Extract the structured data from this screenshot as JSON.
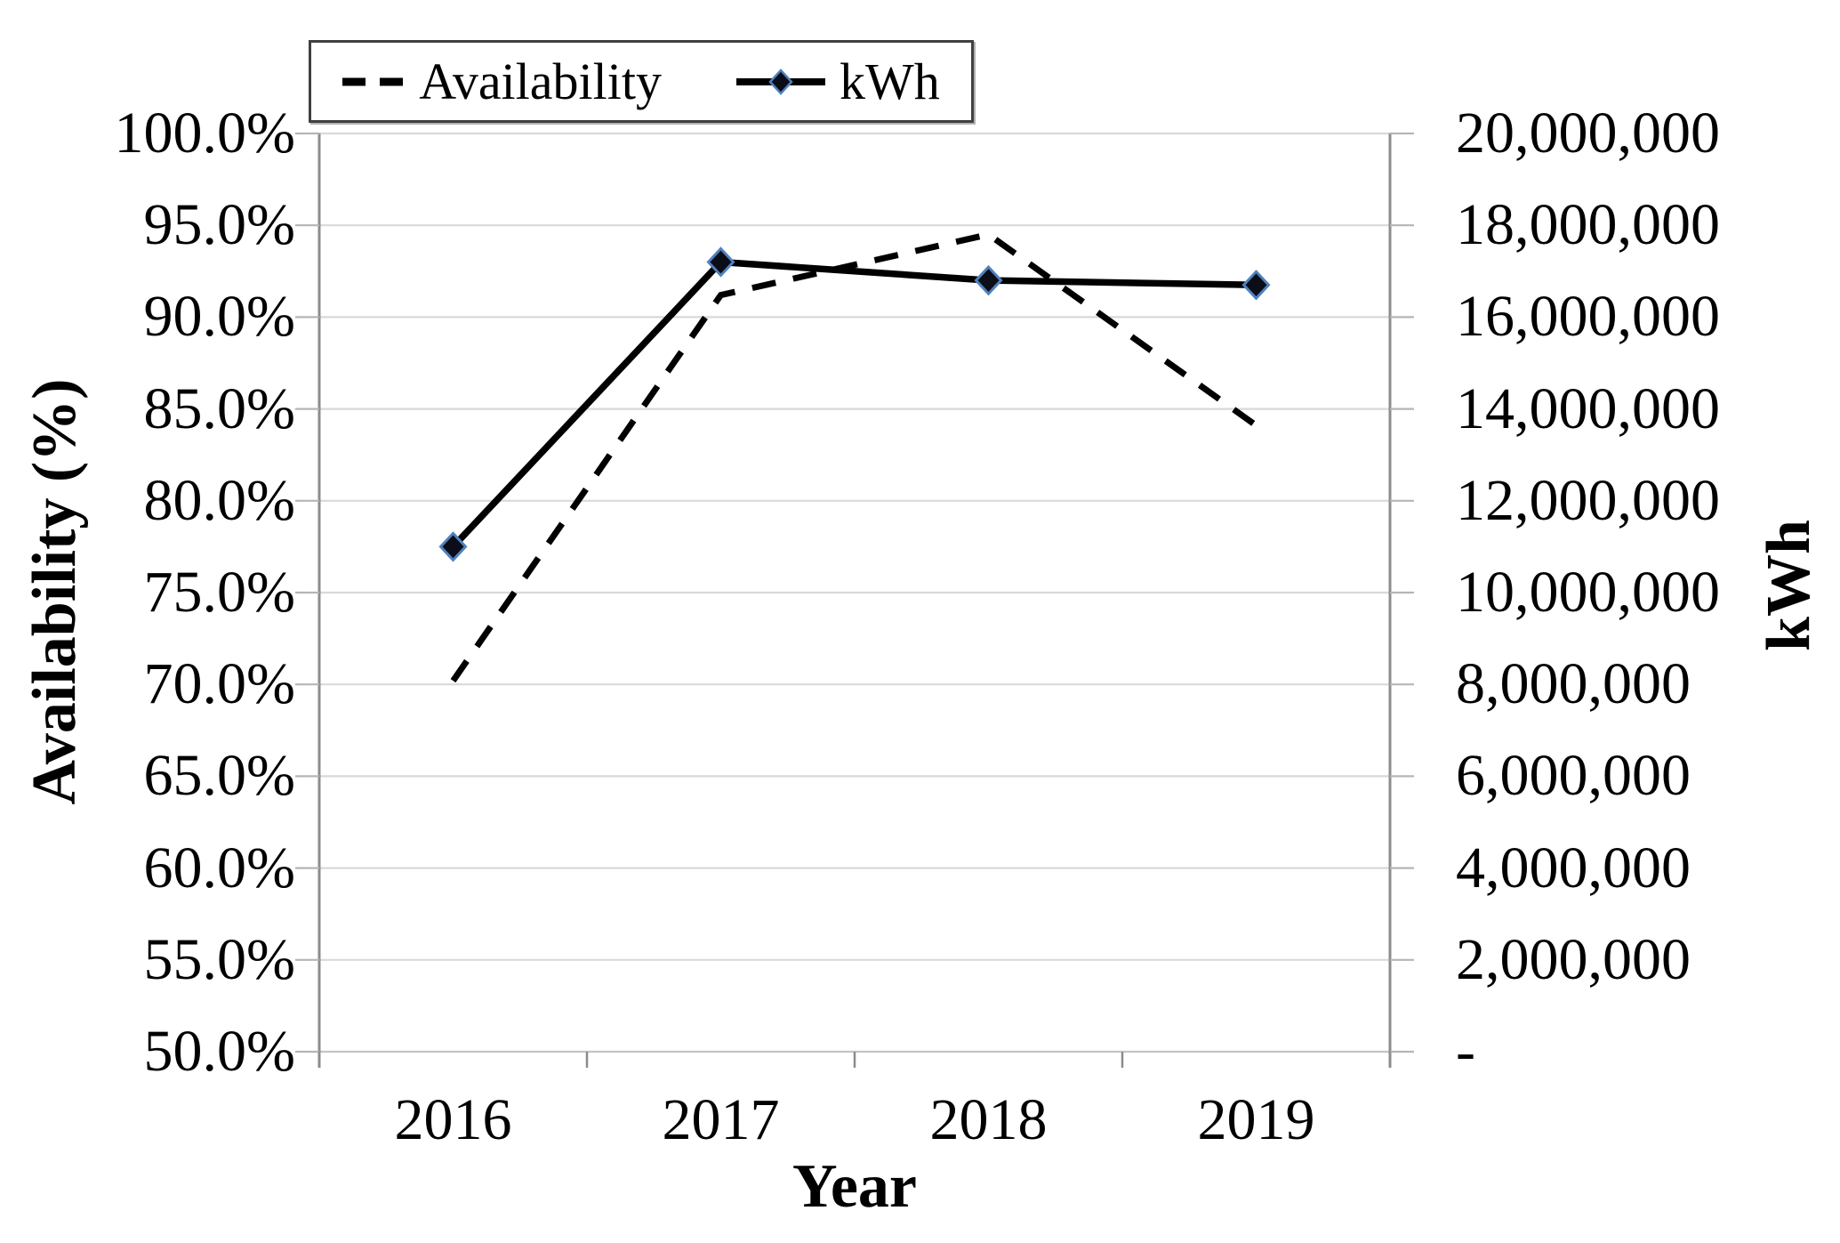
{
  "chart_data": {
    "type": "line",
    "title": "",
    "x": [
      "2016",
      "2017",
      "2018",
      "2019"
    ],
    "xlabel": "Year",
    "y_left": {
      "label": "Availability (%)",
      "min": 50,
      "max": 100,
      "tick_step_percent": 5,
      "ticks": [
        "100.0%",
        "95.0%",
        "90.0%",
        "85.0%",
        "80.0%",
        "75.0%",
        "70.0%",
        "65.0%",
        "60.0%",
        "55.0%",
        "50.0%"
      ]
    },
    "y_right": {
      "label": "kWh",
      "min": 0,
      "max": 20000000,
      "tick_step": 2000000,
      "ticks": [
        "20,000,000",
        "18,000,000",
        "16,000,000",
        "14,000,000",
        "12,000,000",
        "10,000,000",
        "8,000,000",
        "6,000,000",
        "4,000,000",
        "2,000,000",
        "-"
      ]
    },
    "series": [
      {
        "name": "Availability",
        "axis": "left",
        "line_style": "dashed",
        "color": "#000000",
        "marker": "none",
        "values_percent": [
          70.2,
          91.2,
          94.5,
          84.1
        ]
      },
      {
        "name": "kWh",
        "axis": "right",
        "line_style": "solid",
        "color": "#000000",
        "marker": "diamond",
        "marker_fill": "#0b0d18",
        "marker_edge": "#4f81bd",
        "values_kwh": [
          11000000,
          17200000,
          16800000,
          16700000
        ]
      }
    ],
    "legend": {
      "position": "top-left",
      "entries": [
        "Availability",
        "kWh"
      ]
    },
    "grid": "horizontal",
    "gridline_color": "#d9d9d9",
    "axis_line_color": "#8c8c8c"
  }
}
